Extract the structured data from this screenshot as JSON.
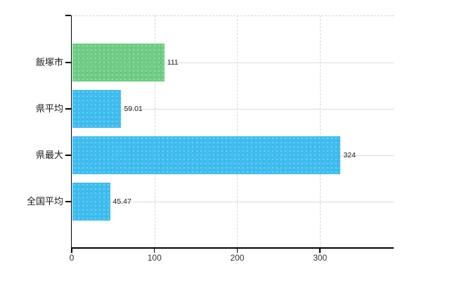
{
  "chart_data": {
    "type": "bar",
    "orientation": "horizontal",
    "title": "",
    "xlabel": "",
    "ylabel": "",
    "categories": [
      "飯塚市",
      "県平均",
      "県最大",
      "全国平均"
    ],
    "values": [
      111,
      59.01,
      324,
      45.47
    ],
    "value_labels": [
      "111",
      "59.01",
      "324",
      "45.47"
    ],
    "bar_colors": [
      "#6fcd85",
      "#3fbdf0",
      "#3fbdf0",
      "#3fbdf0"
    ],
    "x_ticks": [
      0,
      100,
      200,
      300
    ],
    "x_tick_labels": [
      "0",
      "100",
      "200",
      "300"
    ],
    "xlim": [
      0,
      389
    ],
    "grid": true,
    "legend": false
  },
  "colors": {
    "bar_green": "#6fcd85",
    "bar_blue": "#3fbdf0",
    "axis": "#000000",
    "grid_horizontal": "#d9ded9",
    "grid_vertical": "#d6d6d6",
    "plot_top_border": "#d4d4d4",
    "category_label": "#1a1a1a",
    "x_tick_label": "#333333",
    "value_label": "#1a1a1a",
    "background": "#ffffff"
  }
}
